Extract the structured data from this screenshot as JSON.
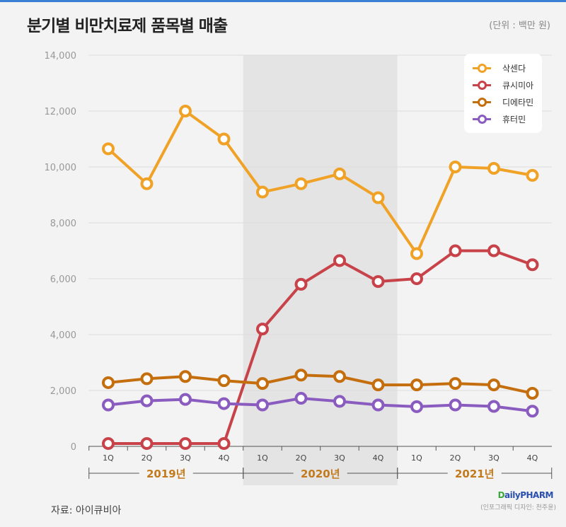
{
  "header": {
    "title": "분기별 비만치료제 품목별 매출",
    "unit": "(단위 : 백만 원)"
  },
  "footer": {
    "source": "자료: 아이큐비아",
    "logo": "DailyPHARM",
    "credit": "(인포그래픽 디자인: 천주윤)"
  },
  "chart_data": {
    "type": "line",
    "title": "분기별 비만치료제 품목별 매출",
    "ylabel": "백만 원",
    "ylim": [
      0,
      14000
    ],
    "yticks": [
      "0",
      "2,000",
      "4,000",
      "6,000",
      "8,000",
      "10,000",
      "12,000",
      "14,000"
    ],
    "categories": [
      "1Q",
      "2Q",
      "3Q",
      "4Q",
      "1Q",
      "2Q",
      "3Q",
      "4Q",
      "1Q",
      "2Q",
      "3Q",
      "4Q"
    ],
    "years": [
      "2019년",
      "2020년",
      "2021년"
    ],
    "highlight_year": "2020년",
    "legend_position": "top-right",
    "series": [
      {
        "name": "삭센다",
        "color": "#f0a227",
        "values": [
          10650,
          9400,
          12000,
          11000,
          9100,
          9400,
          9750,
          8900,
          6900,
          10000,
          9950,
          9700
        ]
      },
      {
        "name": "큐시미아",
        "color": "#c8424a",
        "values": [
          100,
          100,
          100,
          100,
          4200,
          5800,
          6650,
          5900,
          6000,
          7000,
          7000,
          6500
        ]
      },
      {
        "name": "디에타민",
        "color": "#c46e0e",
        "values": [
          2280,
          2420,
          2500,
          2350,
          2250,
          2550,
          2500,
          2200,
          2200,
          2250,
          2200,
          1900
        ]
      },
      {
        "name": "휴터민",
        "color": "#8a5cc0",
        "values": [
          1480,
          1630,
          1680,
          1530,
          1480,
          1720,
          1610,
          1480,
          1420,
          1480,
          1430,
          1260
        ]
      }
    ]
  }
}
